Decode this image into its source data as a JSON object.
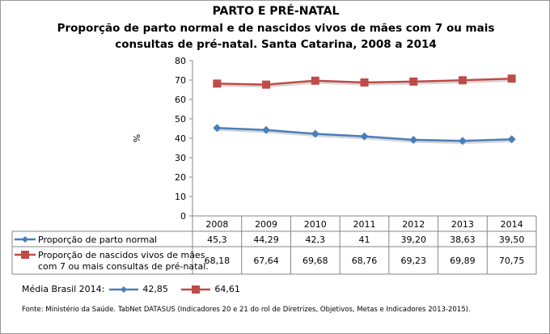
{
  "chart_data": {
    "type": "line",
    "title": "PARTO E PRÉ-NATAL",
    "subtitle_line1": "Proporção de parto normal e de nascidos vivos de mães com 7 ou mais",
    "subtitle_line2": "consultas de pré-natal. Santa Catarina, 2008 a 2014",
    "ylabel": "%",
    "ylim": [
      0,
      80
    ],
    "yticks": [
      "0",
      "10",
      "20",
      "30",
      "40",
      "50",
      "60",
      "70",
      "80"
    ],
    "categories": [
      "2008",
      "2009",
      "2010",
      "2011",
      "2012",
      "2013",
      "2014"
    ],
    "series": [
      {
        "name": "Proporção de parto normal",
        "color": "#4a7ebb",
        "marker": "diamond",
        "values": [
          45.3,
          44.29,
          42.3,
          41,
          39.2,
          38.63,
          39.5
        ],
        "labels": [
          "45,3",
          "44,29",
          "42,3",
          "41",
          "39,20",
          "38,63",
          "39,50"
        ]
      },
      {
        "name_line1": "Proporção de nascidos vivos de mães",
        "name_line2": "com 7 ou mais consultas de pré-natal.",
        "color": "#be4b48",
        "marker": "square",
        "values": [
          68.18,
          67.64,
          69.68,
          68.76,
          69.23,
          69.89,
          70.75
        ],
        "labels": [
          "68,18",
          "67,64",
          "69,68",
          "68,76",
          "69,23",
          "69,89",
          "70,75"
        ]
      }
    ],
    "brasil_label": "Média Brasil 2014:",
    "brasil_values": [
      "42,85",
      "64,61"
    ],
    "source": "Fonte: Ministério da Saúde. TabNet DATASUS (Indicadores 20 e 21 do rol de Diretrizes, Objetivos, Metas e Indicadores 2013-2015)."
  }
}
